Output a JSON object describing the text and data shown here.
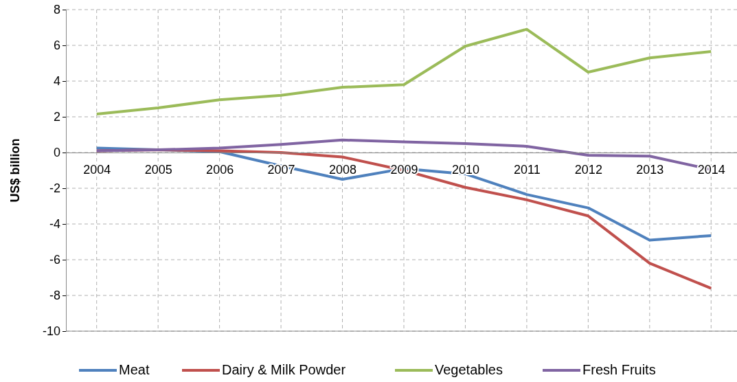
{
  "chart_data": {
    "type": "line",
    "ylabel": "US$ billion",
    "categories": [
      "2004",
      "2005",
      "2006",
      "2007",
      "2008",
      "2009",
      "2010",
      "2011",
      "2012",
      "2013",
      "2014"
    ],
    "series": [
      {
        "name": "Meat",
        "color": "#4f81bd",
        "values": [
          0.25,
          0.15,
          0.05,
          -0.75,
          -1.5,
          -0.9,
          -1.2,
          -2.35,
          -3.1,
          -4.9,
          -4.65
        ]
      },
      {
        "name": "Dairy & Milk Powder",
        "color": "#c0504d",
        "values": [
          0.1,
          0.15,
          0.1,
          0,
          -0.25,
          -1.0,
          -1.95,
          -2.65,
          -3.55,
          -6.2,
          -7.6
        ]
      },
      {
        "name": "Vegetables",
        "color": "#9bbb59",
        "values": [
          2.15,
          2.5,
          2.95,
          3.2,
          3.65,
          3.8,
          5.95,
          6.9,
          4.5,
          5.3,
          5.65
        ]
      },
      {
        "name": "Fresh Fruits",
        "color": "#8064a2",
        "values": [
          0.1,
          0.15,
          0.25,
          0.45,
          0.7,
          0.6,
          0.5,
          0.35,
          -0.15,
          -0.2,
          -0.95
        ]
      }
    ],
    "ylim": [
      -10,
      8
    ],
    "yticks": [
      -10,
      -8,
      -6,
      -4,
      -2,
      0,
      2,
      4,
      6,
      8
    ],
    "grid": true,
    "legend": "bottom",
    "marker": "none",
    "line_style": "solid"
  }
}
